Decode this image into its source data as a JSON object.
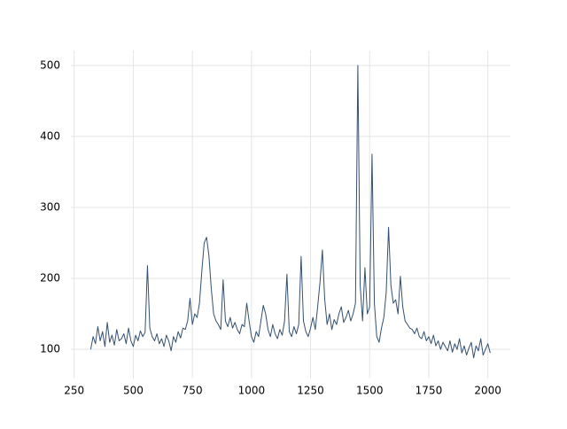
{
  "chart_data": {
    "type": "line",
    "x": [
      320,
      330,
      340,
      350,
      360,
      370,
      380,
      390,
      400,
      410,
      420,
      430,
      440,
      450,
      460,
      470,
      480,
      490,
      500,
      510,
      520,
      530,
      540,
      550,
      560,
      570,
      580,
      590,
      600,
      610,
      620,
      630,
      640,
      650,
      660,
      670,
      680,
      690,
      700,
      710,
      720,
      730,
      740,
      750,
      760,
      770,
      780,
      790,
      800,
      810,
      820,
      830,
      840,
      850,
      860,
      870,
      880,
      890,
      900,
      910,
      920,
      930,
      940,
      950,
      960,
      970,
      980,
      990,
      1000,
      1010,
      1020,
      1030,
      1040,
      1050,
      1060,
      1070,
      1080,
      1090,
      1100,
      1110,
      1120,
      1130,
      1140,
      1150,
      1160,
      1170,
      1180,
      1190,
      1200,
      1210,
      1220,
      1230,
      1240,
      1250,
      1260,
      1270,
      1280,
      1290,
      1300,
      1310,
      1320,
      1330,
      1340,
      1350,
      1360,
      1370,
      1380,
      1390,
      1400,
      1410,
      1420,
      1430,
      1440,
      1450,
      1460,
      1470,
      1480,
      1490,
      1500,
      1510,
      1520,
      1530,
      1540,
      1550,
      1560,
      1570,
      1580,
      1590,
      1600,
      1610,
      1620,
      1630,
      1640,
      1650,
      1660,
      1670,
      1680,
      1690,
      1700,
      1710,
      1720,
      1730,
      1740,
      1750,
      1760,
      1770,
      1780,
      1790,
      1800,
      1810,
      1820,
      1830,
      1840,
      1850,
      1860,
      1870,
      1880,
      1890,
      1900,
      1910,
      1920,
      1930,
      1940,
      1950,
      1960,
      1970,
      1980,
      1990,
      2000,
      2010
    ],
    "series": [
      {
        "color": "#34506f",
        "values": [
          100,
          118,
          108,
          132,
          112,
          125,
          104,
          138,
          110,
          120,
          106,
          128,
          112,
          115,
          122,
          108,
          130,
          112,
          104,
          120,
          112,
          126,
          118,
          124,
          218,
          130,
          118,
          112,
          122,
          108,
          115,
          104,
          120,
          112,
          98,
          118,
          110,
          125,
          116,
          130,
          128,
          140,
          172,
          135,
          150,
          145,
          165,
          210,
          250,
          258,
          232,
          185,
          150,
          140,
          135,
          128,
          198,
          140,
          132,
          145,
          130,
          138,
          128,
          122,
          135,
          132,
          165,
          140,
          118,
          110,
          125,
          118,
          140,
          162,
          150,
          128,
          118,
          135,
          122,
          115,
          128,
          120,
          140,
          206,
          125,
          118,
          132,
          122,
          135,
          231,
          140,
          125,
          118,
          130,
          145,
          128,
          160,
          195,
          240,
          170,
          135,
          150,
          128,
          142,
          135,
          150,
          160,
          138,
          145,
          155,
          140,
          150,
          165,
          500,
          190,
          140,
          215,
          150,
          160,
          375,
          165,
          118,
          110,
          130,
          145,
          180,
          272,
          190,
          165,
          170,
          150,
          203,
          160,
          140,
          135,
          130,
          128,
          122,
          130,
          118,
          115,
          125,
          112,
          118,
          108,
          120,
          105,
          112,
          100,
          110,
          104,
          98,
          112,
          96,
          108,
          100,
          115,
          95,
          105,
          92,
          102,
          110,
          88,
          105,
          98,
          115,
          92,
          100,
          108,
          95
        ]
      }
    ],
    "xlim": [
      236,
      2095
    ],
    "ylim": [
      59,
      521
    ],
    "xticks": [
      250,
      500,
      750,
      1000,
      1250,
      1500,
      1750,
      2000
    ],
    "yticks": [
      100,
      200,
      300,
      400,
      500
    ],
    "grid": true
  }
}
